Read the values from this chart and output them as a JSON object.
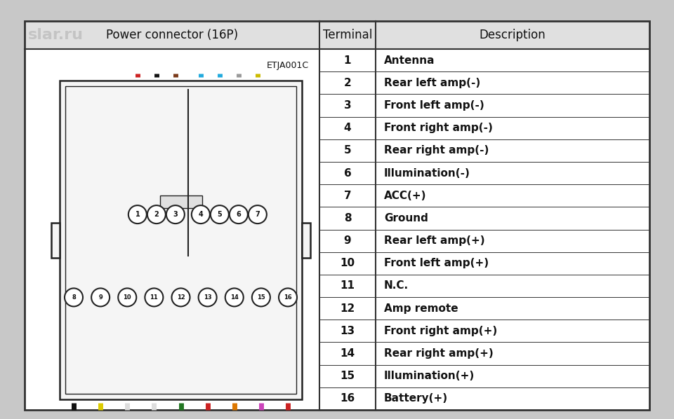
{
  "title_col1": "Power connector (16P)",
  "title_col2": "Terminal",
  "title_col3": "Description",
  "code": "ETJA001C",
  "terminals": [
    1,
    2,
    3,
    4,
    5,
    6,
    7,
    8,
    9,
    10,
    11,
    12,
    13,
    14,
    15,
    16
  ],
  "descriptions": [
    "Antenna",
    "Rear left amp(-)",
    "Front left amp(-)",
    "Front right amp(-)",
    "Rear right amp(-)",
    "Illumination(-)",
    "ACC(+)",
    "Ground",
    "Rear left amp(+)",
    "Front left amp(+)",
    "N.C.",
    "Amp remote",
    "Front right amp(+)",
    "Rear right amp(+)",
    "Illumination(+)",
    "Battery(+)"
  ],
  "bg_color": "#c8c8c8",
  "cell_bg": "#ffffff",
  "header_bg": "#e0e0e0",
  "border_color": "#333333",
  "wire_colors_top": [
    "#cc2222",
    "#111111",
    "#7a3a1a",
    "#22aadd",
    "#22aadd",
    "#999999",
    "#ccbb00"
  ],
  "wire_colors_bottom": [
    "#111111",
    "#ddcc00",
    "#dddddd",
    "#dddddd",
    "#227722",
    "#cc2222",
    "#dd7700",
    "#cc44bb",
    "#cc2222"
  ],
  "pin_top_nums": [
    1,
    2,
    3,
    4,
    5,
    6,
    7
  ],
  "pin_bottom_nums": [
    8,
    9,
    10,
    11,
    12,
    13,
    14,
    15,
    16
  ],
  "font_color": "#111111",
  "font_size_header": 12,
  "font_size_body": 11,
  "font_size_code": 9,
  "watermark_text": "slar.ru"
}
